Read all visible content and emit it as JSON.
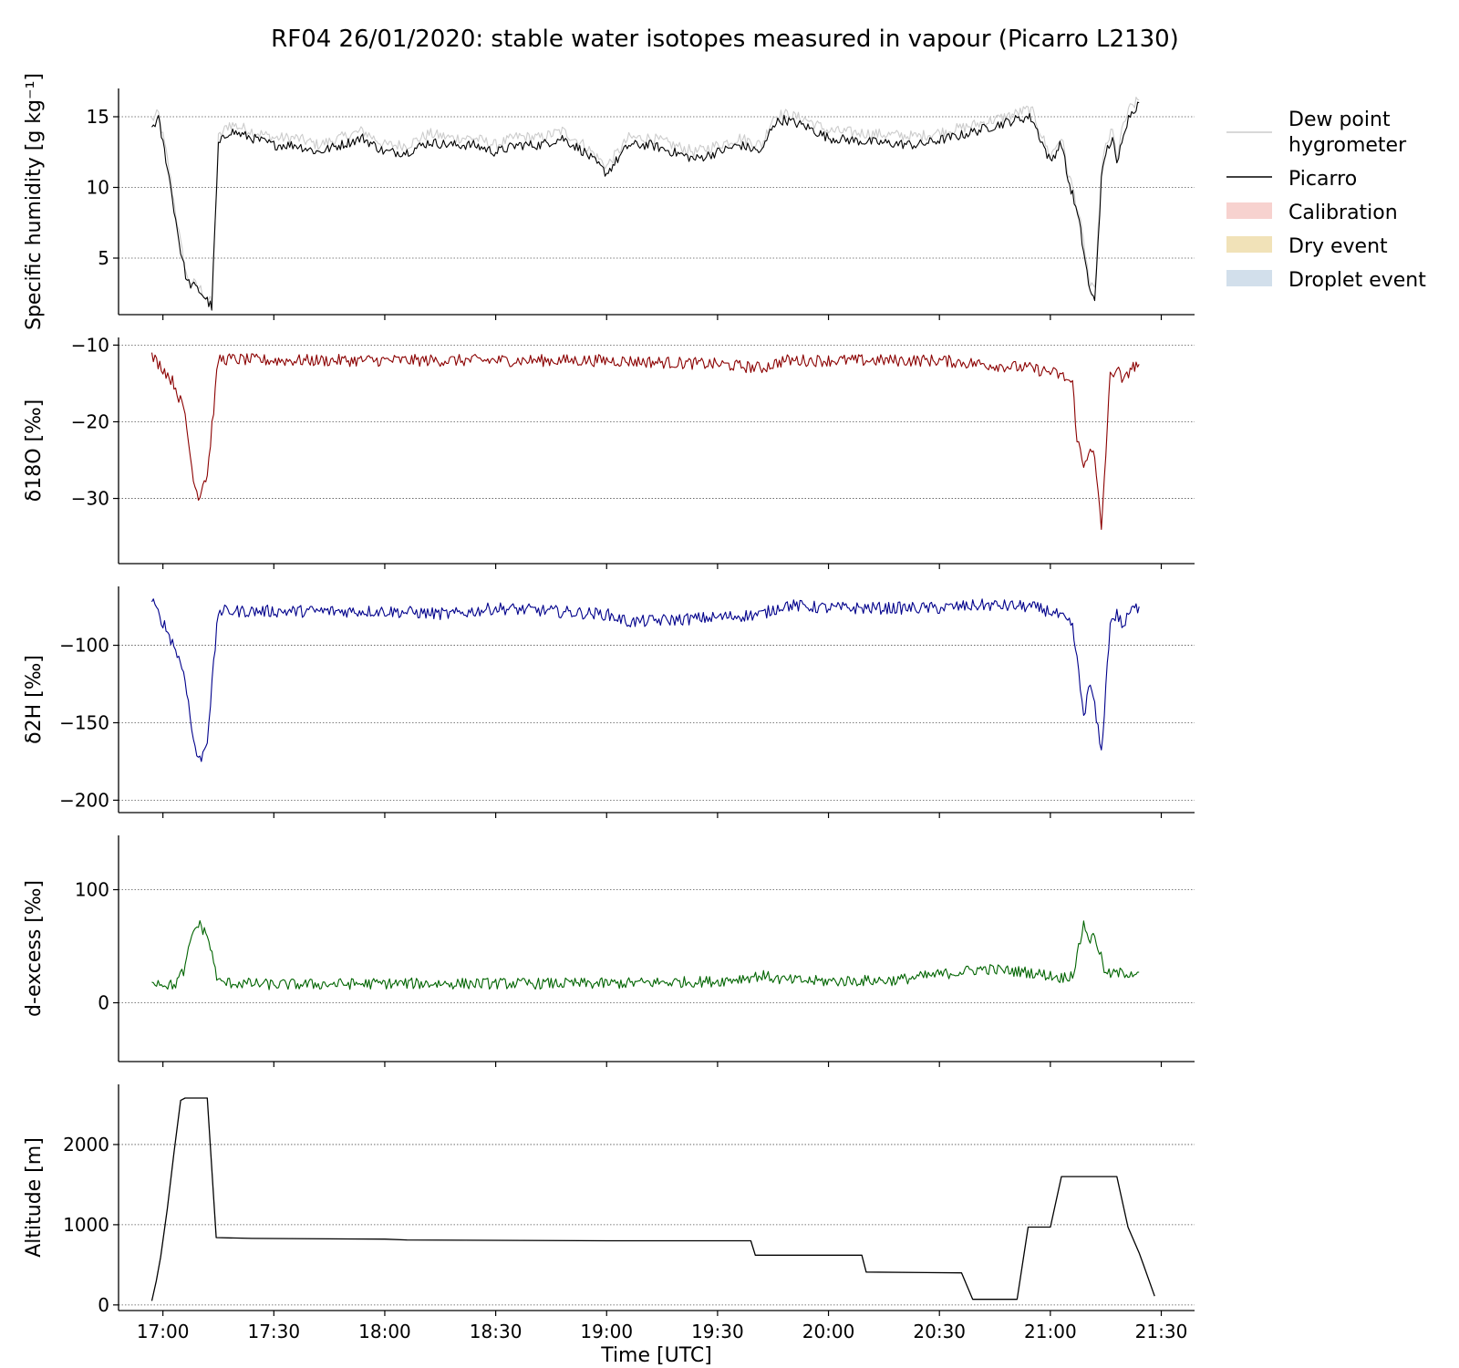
{
  "title": "RF04 26/01/2020: stable water isotopes measured in vapour (Picarro L2130)",
  "legend": {
    "placement": "outside-top-right",
    "entries": [
      {
        "label_lines": [
          "Dew point",
          "hygrometer"
        ],
        "kind": "line",
        "color": "#cccccc"
      },
      {
        "label_lines": [
          "Picarro"
        ],
        "kind": "line",
        "color": "#000000"
      },
      {
        "label_lines": [
          "Calibration"
        ],
        "kind": "patch",
        "color": "#f7d2cf"
      },
      {
        "label_lines": [
          "Dry event"
        ],
        "kind": "patch",
        "color": "#f1e2b8"
      },
      {
        "label_lines": [
          "Droplet event"
        ],
        "kind": "patch",
        "color": "#d2dfeb"
      }
    ]
  },
  "chart_data": [
    {
      "type": "line",
      "panel": "specific-humidity",
      "ylabel": "Specific humidity [g kg⁻¹]",
      "xlim": [
        16.8,
        21.65
      ],
      "ylim": [
        1,
        17
      ],
      "yticks": [
        5,
        10,
        15
      ],
      "grid": "horizontal-dotted",
      "series": [
        {
          "name": "Dew point hygrometer",
          "color": "#cccccc",
          "noise": 0.4,
          "x": [
            16.95,
            16.98,
            17.02,
            17.05,
            17.08,
            17.11,
            17.14,
            17.17,
            17.2,
            17.22,
            17.25,
            17.3,
            17.4,
            17.5,
            17.6,
            17.7,
            17.8,
            17.9,
            18.0,
            18.1,
            18.2,
            18.3,
            18.4,
            18.5,
            18.6,
            18.7,
            18.8,
            18.9,
            19.0,
            19.1,
            19.2,
            19.3,
            19.4,
            19.5,
            19.6,
            19.7,
            19.75,
            19.8,
            19.9,
            20.0,
            20.2,
            20.4,
            20.6,
            20.8,
            20.9,
            20.92,
            21.0,
            21.05,
            21.08,
            21.1,
            21.13,
            21.15,
            21.18,
            21.2,
            21.23,
            21.25,
            21.28,
            21.3,
            21.33,
            21.36,
            21.4
          ],
          "y": [
            14.8,
            15.2,
            12,
            9,
            6,
            3.5,
            3.2,
            2.8,
            2.2,
            1.8,
            13.5,
            14.5,
            14,
            13.5,
            13.5,
            13,
            13.5,
            14,
            13,
            13,
            13.8,
            13.5,
            13.5,
            13,
            13.6,
            13.5,
            14,
            13,
            11.5,
            13.5,
            13.5,
            13,
            12.5,
            13,
            13.5,
            13,
            15,
            15.2,
            14.8,
            14,
            13.8,
            13.6,
            14.2,
            15,
            15.5,
            15.3,
            12.2,
            13.6,
            11,
            10,
            8,
            6,
            3,
            2.6,
            11,
            13,
            14,
            12,
            14.5,
            15.6,
            16.2
          ]
        },
        {
          "name": "Picarro",
          "color": "#000000",
          "noise": 0.35,
          "x": [
            16.95,
            16.98,
            17.02,
            17.05,
            17.08,
            17.11,
            17.14,
            17.17,
            17.2,
            17.22,
            17.25,
            17.3,
            17.4,
            17.5,
            17.6,
            17.7,
            17.8,
            17.9,
            18.0,
            18.1,
            18.2,
            18.3,
            18.4,
            18.5,
            18.6,
            18.7,
            18.8,
            18.9,
            19.0,
            19.1,
            19.2,
            19.3,
            19.4,
            19.5,
            19.6,
            19.7,
            19.75,
            19.8,
            19.9,
            20.0,
            20.2,
            20.4,
            20.6,
            20.8,
            20.9,
            20.92,
            21.0,
            21.05,
            21.08,
            21.1,
            21.13,
            21.15,
            21.18,
            21.2,
            21.23,
            21.25,
            21.28,
            21.3,
            21.33,
            21.36,
            21.4
          ],
          "y": [
            14.3,
            14.8,
            11.5,
            8.5,
            5.5,
            3.3,
            3,
            2.6,
            2,
            1.5,
            13,
            14,
            13.5,
            13,
            13,
            12.5,
            13,
            13.5,
            12.5,
            12.5,
            13.2,
            13,
            13,
            12.5,
            13,
            13,
            13.5,
            12.5,
            11,
            13,
            13,
            12.5,
            12,
            12.5,
            13,
            12.5,
            14.5,
            14.8,
            14.3,
            13.5,
            13.2,
            13,
            13.7,
            14.6,
            15,
            14.8,
            11.8,
            13.2,
            10.5,
            9.5,
            7.5,
            5.5,
            2.5,
            2,
            10.5,
            12.5,
            13.5,
            11.5,
            14,
            15.2,
            16
          ]
        }
      ]
    },
    {
      "type": "line",
      "panel": "d18O",
      "ylabel": "δ18O [‰]",
      "xlim": [
        16.8,
        21.65
      ],
      "ylim": [
        -38.5,
        -9
      ],
      "yticks": [
        -10,
        -20,
        -30
      ],
      "grid": "horizontal-dotted",
      "series": [
        {
          "name": "δ18O",
          "color": "#8b0000",
          "noise": 0.8,
          "x": [
            16.95,
            17.0,
            17.05,
            17.1,
            17.13,
            17.16,
            17.18,
            17.2,
            17.25,
            17.5,
            18.0,
            18.5,
            19.0,
            19.5,
            19.7,
            19.8,
            20.0,
            20.5,
            20.7,
            20.9,
            21.0,
            21.05,
            21.1,
            21.12,
            21.15,
            21.18,
            21.2,
            21.23,
            21.27,
            21.3,
            21.33,
            21.36,
            21.4
          ],
          "y": [
            -11.5,
            -13,
            -15,
            -19,
            -26,
            -30,
            -28,
            -27,
            -11.8,
            -12,
            -12,
            -12,
            -12,
            -12.5,
            -13,
            -12,
            -12,
            -12,
            -12.5,
            -13,
            -13.5,
            -14,
            -15,
            -22,
            -26,
            -23,
            -25,
            -34,
            -14,
            -13,
            -15,
            -13,
            -12.5
          ]
        }
      ]
    },
    {
      "type": "line",
      "panel": "d2H",
      "ylabel": "δ2H [‰]",
      "xlim": [
        16.8,
        21.65
      ],
      "ylim": [
        -208,
        -62
      ],
      "yticks": [
        -100,
        -150,
        -200
      ],
      "grid": "horizontal-dotted",
      "series": [
        {
          "name": "δ2H",
          "color": "#00008b",
          "noise": 4,
          "x": [
            16.95,
            17.0,
            17.05,
            17.1,
            17.13,
            17.16,
            17.18,
            17.2,
            17.25,
            17.5,
            18.0,
            18.3,
            18.5,
            19.0,
            19.1,
            19.5,
            19.7,
            19.8,
            20.0,
            20.5,
            20.7,
            20.9,
            21.0,
            21.05,
            21.1,
            21.12,
            21.15,
            21.18,
            21.2,
            21.23,
            21.27,
            21.3,
            21.33,
            21.36,
            21.4
          ],
          "y": [
            -72,
            -85,
            -100,
            -120,
            -155,
            -175,
            -170,
            -160,
            -78,
            -78,
            -78,
            -80,
            -76,
            -80,
            -85,
            -82,
            -80,
            -74,
            -76,
            -76,
            -74,
            -75,
            -78,
            -82,
            -88,
            -110,
            -145,
            -125,
            -140,
            -170,
            -85,
            -80,
            -88,
            -78,
            -75
          ]
        }
      ]
    },
    {
      "type": "line",
      "panel": "d-excess",
      "ylabel": "d-excess [‰]",
      "xlim": [
        16.8,
        21.65
      ],
      "ylim": [
        -52,
        148
      ],
      "yticks": [
        0,
        100
      ],
      "grid": "horizontal-dotted",
      "series": [
        {
          "name": "d-excess",
          "color": "#006400",
          "noise": 5,
          "x": [
            16.95,
            17.0,
            17.05,
            17.1,
            17.13,
            17.16,
            17.2,
            17.25,
            17.5,
            18.0,
            18.5,
            19.0,
            19.5,
            19.7,
            19.8,
            20.0,
            20.3,
            20.5,
            20.7,
            20.9,
            21.0,
            21.05,
            21.1,
            21.12,
            21.15,
            21.18,
            21.2,
            21.25,
            21.3,
            21.4
          ],
          "y": [
            20,
            17,
            15,
            30,
            60,
            70,
            60,
            18,
            16,
            17,
            17,
            17,
            19,
            24,
            20,
            19,
            20,
            25,
            30,
            27,
            24,
            22,
            25,
            40,
            70,
            55,
            60,
            25,
            26,
            27
          ]
        }
      ]
    },
    {
      "type": "line",
      "panel": "altitude",
      "ylabel": "Altitude [m]",
      "xlabel": "Time [UTC]",
      "xlim": [
        16.8,
        21.65
      ],
      "ylim": [
        -70,
        2750
      ],
      "yticks": [
        0,
        1000,
        2000
      ],
      "xticks": [
        17.0,
        17.5,
        18.0,
        18.5,
        19.0,
        19.5,
        20.0,
        20.5,
        21.0,
        21.5
      ],
      "xtick_labels": [
        "17:00",
        "17:30",
        "18:00",
        "18:30",
        "19:00",
        "19:30",
        "20:00",
        "20:30",
        "21:00",
        "21:30"
      ],
      "grid": "horizontal-dotted",
      "series": [
        {
          "name": "Altitude",
          "color": "#000000",
          "noise": 0,
          "x": [
            16.95,
            16.97,
            16.99,
            17.02,
            17.05,
            17.08,
            17.1,
            17.15,
            17.2,
            17.24,
            17.4,
            18.0,
            18.1,
            19.0,
            19.3,
            19.65,
            19.67,
            20.15,
            20.17,
            20.6,
            20.65,
            20.85,
            20.9,
            21.0,
            21.05,
            21.3,
            21.35,
            21.4,
            21.42,
            21.47
          ],
          "y": [
            50,
            300,
            600,
            1200,
            1900,
            2550,
            2580,
            2580,
            2580,
            840,
            830,
            820,
            810,
            800,
            800,
            800,
            620,
            620,
            410,
            400,
            70,
            70,
            970,
            970,
            1600,
            1600,
            970,
            650,
            500,
            110
          ]
        }
      ]
    }
  ]
}
